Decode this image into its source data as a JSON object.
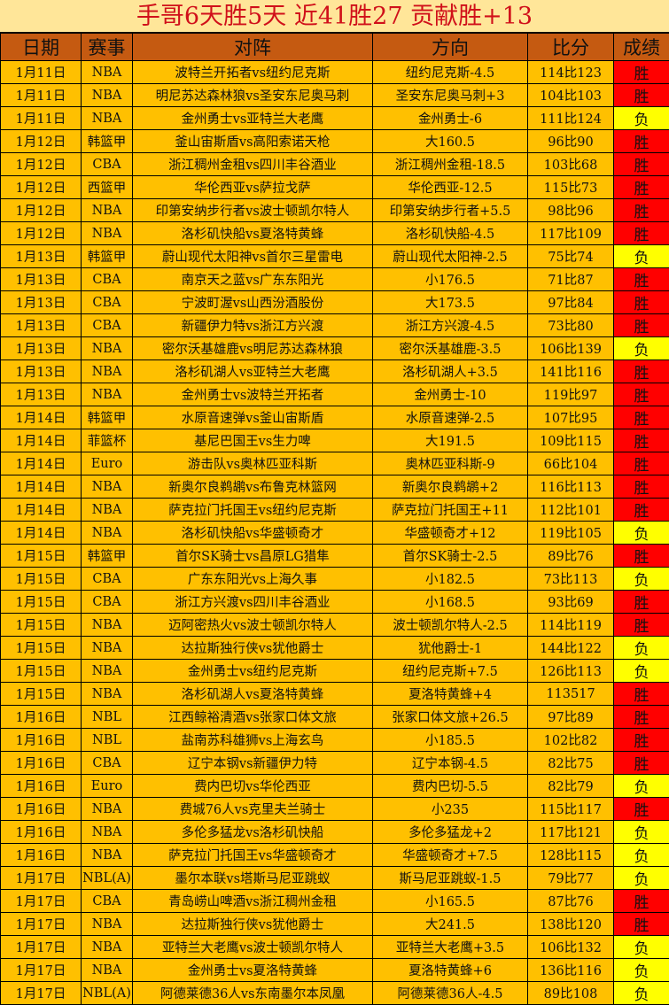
{
  "title": "手哥6天胜5天  近41胜27  贡献胜+13",
  "columns": [
    "日期",
    "赛事",
    "对阵",
    "方向",
    "比分",
    "成绩"
  ],
  "colors": {
    "title_bg": "#FFE699",
    "title_text": "#D0101A",
    "header_bg": "#C55A11",
    "row_bg": "#FFC000",
    "win_bg": "#FF0000",
    "lose_bg": "#FFFF00"
  },
  "rows": [
    [
      "1月11日",
      "NBA",
      "波特兰开拓者vs纽约尼克斯",
      "纽约尼克斯-4.5",
      "114比123",
      "胜"
    ],
    [
      "1月11日",
      "NBA",
      "明尼苏达森林狼vs圣安东尼奥马刺",
      "圣安东尼奥马刺+3",
      "104比103",
      "胜"
    ],
    [
      "1月11日",
      "NBA",
      "金州勇士vs亚特兰大老鹰",
      "金州勇士-6",
      "111比124",
      "负"
    ],
    [
      "1月12日",
      "韩篮甲",
      "釜山宙斯盾vs高阳索诺天枪",
      "大160.5",
      "96比90",
      "胜"
    ],
    [
      "1月12日",
      "CBA",
      "浙江稠州金租vs四川丰谷酒业",
      "浙江稠州金租-18.5",
      "103比68",
      "胜"
    ],
    [
      "1月12日",
      "西篮甲",
      "华伦西亚vs萨拉戈萨",
      "华伦西亚-12.5",
      "115比73",
      "胜"
    ],
    [
      "1月12日",
      "NBA",
      "印第安纳步行者vs波士顿凯尔特人",
      "印第安纳步行者+5.5",
      "98比96",
      "胜"
    ],
    [
      "1月12日",
      "NBA",
      "洛杉矶快船vs夏洛特黄蜂",
      "洛杉矶快船-4.5",
      "117比109",
      "胜"
    ],
    [
      "1月13日",
      "韩篮甲",
      "蔚山现代太阳神vs首尔三星雷电",
      "蔚山现代太阳神-2.5",
      "75比74",
      "负"
    ],
    [
      "1月13日",
      "CBA",
      "南京天之蓝vs广东东阳光",
      "小176.5",
      "71比87",
      "胜"
    ],
    [
      "1月13日",
      "CBA",
      "宁波町渥vs山西汾酒股份",
      "大173.5",
      "97比84",
      "胜"
    ],
    [
      "1月13日",
      "CBA",
      "新疆伊力特vs浙江方兴渡",
      "浙江方兴渡-4.5",
      "73比80",
      "胜"
    ],
    [
      "1月13日",
      "NBA",
      "密尔沃基雄鹿vs明尼苏达森林狼",
      "密尔沃基雄鹿-3.5",
      "106比139",
      "负"
    ],
    [
      "1月13日",
      "NBA",
      "洛杉矶湖人vs亚特兰大老鹰",
      "洛杉矶湖人+3.5",
      "141比116",
      "胜"
    ],
    [
      "1月13日",
      "NBA",
      "金州勇士vs波特兰开拓者",
      "金州勇士-10",
      "119比97",
      "胜"
    ],
    [
      "1月14日",
      "韩篮甲",
      "水原音速弹vs釜山宙斯盾",
      "水原音速弹-2.5",
      "107比95",
      "胜"
    ],
    [
      "1月14日",
      "菲篮杯",
      "基尼巴国王vs生力啤",
      "大191.5",
      "109比115",
      "胜"
    ],
    [
      "1月14日",
      "Euro",
      "游击队vs奥林匹亚科斯",
      "奥林匹亚科斯-9",
      "66比104",
      "胜"
    ],
    [
      "1月14日",
      "NBA",
      "新奥尔良鹈鹕vs布鲁克林篮网",
      "新奥尔良鹈鹕+2",
      "116比113",
      "胜"
    ],
    [
      "1月14日",
      "NBA",
      "萨克拉门托国王vs纽约尼克斯",
      "萨克拉门托国王+11",
      "112比101",
      "胜"
    ],
    [
      "1月14日",
      "NBA",
      "洛杉矶快船vs华盛顿奇才",
      "华盛顿奇才+12",
      "119比105",
      "负"
    ],
    [
      "1月15日",
      "韩篮甲",
      "首尔SK骑士vs昌原LG猎隼",
      "首尔SK骑士-2.5",
      "89比76",
      "胜"
    ],
    [
      "1月15日",
      "CBA",
      "广东东阳光vs上海久事",
      "小182.5",
      "73比113",
      "负"
    ],
    [
      "1月15日",
      "CBA",
      "浙江方兴渡vs四川丰谷酒业",
      "小168.5",
      "93比69",
      "胜"
    ],
    [
      "1月15日",
      "NBA",
      "迈阿密热火vs波士顿凯尔特人",
      "波士顿凯尔特人-2.5",
      "114比119",
      "胜"
    ],
    [
      "1月15日",
      "NBA",
      "达拉斯独行侠vs犹他爵士",
      "犹他爵士-1",
      "144比122",
      "负"
    ],
    [
      "1月15日",
      "NBA",
      "金州勇士vs纽约尼克斯",
      "纽约尼克斯+7.5",
      "126比113",
      "负"
    ],
    [
      "1月15日",
      "NBA",
      "洛杉矶湖人vs夏洛特黄蜂",
      "夏洛特黄蜂+4",
      "113517",
      "胜"
    ],
    [
      "1月16日",
      "NBL",
      "江西鲸裕清酒vs张家口体文旅",
      "张家口体文旅+26.5",
      "97比89",
      "胜"
    ],
    [
      "1月16日",
      "NBL",
      "盐南苏科雄狮vs上海玄鸟",
      "小185.5",
      "102比82",
      "胜"
    ],
    [
      "1月16日",
      "CBA",
      "辽宁本钢vs新疆伊力特",
      "辽宁本钢-4.5",
      "82比75",
      "胜"
    ],
    [
      "1月16日",
      "Euro",
      "费内巴切vs华伦西亚",
      "费内巴切-5.5",
      "82比79",
      "负"
    ],
    [
      "1月16日",
      "NBA",
      "费城76人vs克里夫兰骑士",
      "小235",
      "115比117",
      "胜"
    ],
    [
      "1月16日",
      "NBA",
      "多伦多猛龙vs洛杉矶快船",
      "多伦多猛龙+2",
      "117比121",
      "负"
    ],
    [
      "1月16日",
      "NBA",
      "萨克拉门托国王vs华盛顿奇才",
      "华盛顿奇才+7.5",
      "128比115",
      "负"
    ],
    [
      "1月17日",
      "NBL(A)",
      "墨尔本联vs塔斯马尼亚跳蚁",
      "斯马尼亚跳蚁-1.5",
      "79比77",
      "负"
    ],
    [
      "1月17日",
      "CBA",
      "青岛崂山啤酒vs浙江稠州金租",
      "小165.5",
      "87比76",
      "胜"
    ],
    [
      "1月17日",
      "NBA",
      "达拉斯独行侠vs犹他爵士",
      "大241.5",
      "138比120",
      "胜"
    ],
    [
      "1月17日",
      "NBA",
      "亚特兰大老鹰vs波士顿凯尔特人",
      "亚特兰大老鹰+3.5",
      "106比132",
      "负"
    ],
    [
      "1月17日",
      "NBA",
      "金州勇士vs夏洛特黄蜂",
      "夏洛特黄蜂+6",
      "136比116",
      "负"
    ],
    [
      "1月17日",
      "NBL(A)",
      "阿德莱德36人vs东南墨尔本凤凰",
      "阿德莱德36人-4.5",
      "89比108",
      "负"
    ]
  ]
}
